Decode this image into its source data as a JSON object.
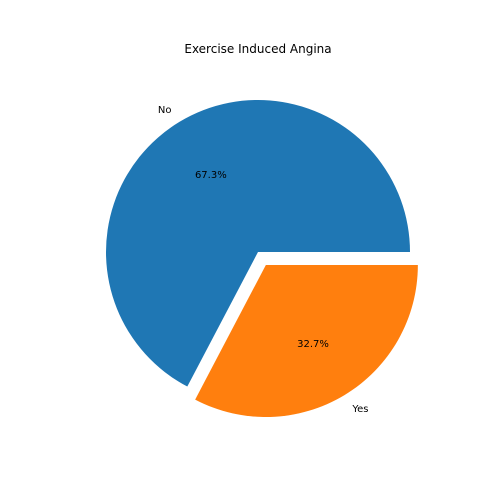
{
  "chart_data": {
    "type": "pie",
    "title": "Exercise Induced Angina",
    "labels": [
      "No",
      "Yes"
    ],
    "values": [
      67.3,
      32.7
    ],
    "pct_labels": [
      "67.3%",
      "32.7%"
    ],
    "explode": [
      0,
      0.1
    ],
    "colors": [
      "#1f77b4",
      "#ff7f0e"
    ],
    "start_angle_deg": 0,
    "direction": "counterclockwise"
  }
}
